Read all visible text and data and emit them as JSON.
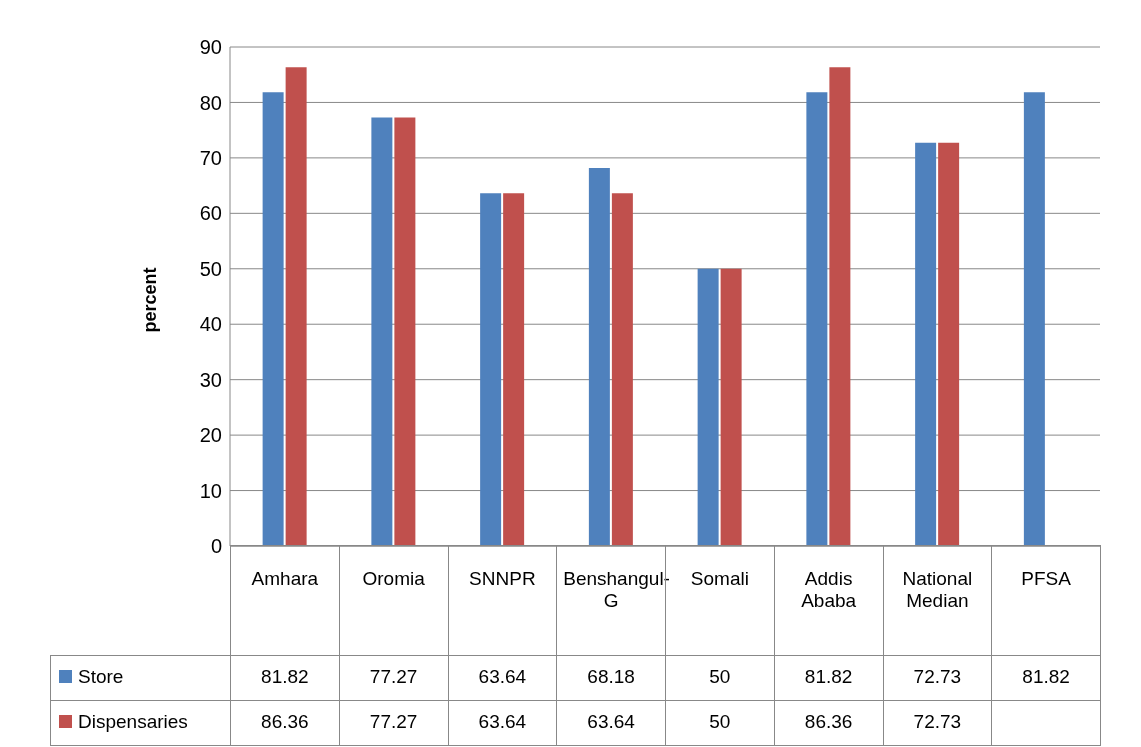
{
  "chart_data": {
    "type": "bar",
    "ylabel": "percent",
    "categories": [
      "Amhara",
      "Oromia",
      "SNNPR",
      "Benshangul-G",
      "Somali",
      "Addis Ababa",
      "National Median",
      "PFSA"
    ],
    "series": [
      {
        "name": "Store",
        "color": "#4f81bd",
        "values": [
          81.82,
          77.27,
          63.64,
          68.18,
          50,
          81.82,
          72.73,
          81.82
        ]
      },
      {
        "name": "Dispensaries",
        "color": "#c0504d",
        "values": [
          86.36,
          77.27,
          63.64,
          63.64,
          50,
          86.36,
          72.73,
          null
        ]
      }
    ],
    "ylim": [
      0,
      90
    ],
    "yticks": [
      0,
      10,
      20,
      30,
      40,
      50,
      60,
      70,
      80,
      90
    ],
    "grid": "y",
    "data_labels": true,
    "legend": "bottom left"
  }
}
